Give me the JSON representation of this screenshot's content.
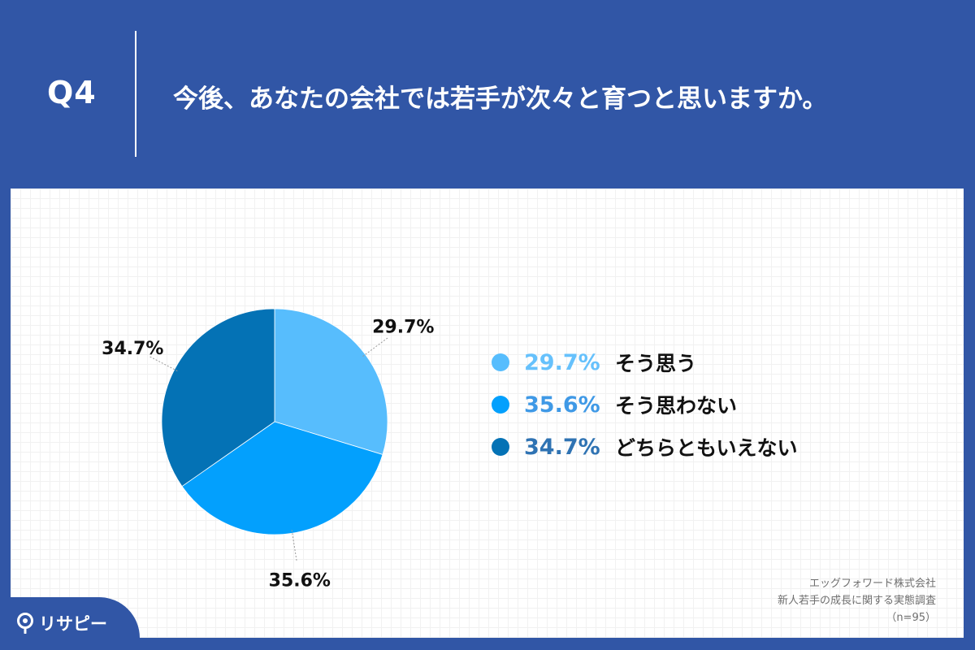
{
  "header": {
    "question_number": "Q4",
    "question_text": "今後、あなたの会社では若手が次々と育つと思いますか。"
  },
  "chart_data": {
    "type": "pie",
    "start_angle_deg": 0,
    "direction": "clockwise",
    "slices": [
      {
        "label": "そう思う",
        "value": 29.7,
        "display": "29.7%",
        "color": "#57bdfd"
      },
      {
        "label": "そう思わない",
        "value": 35.6,
        "display": "35.6%",
        "color": "#03a0fd"
      },
      {
        "label": "どちらともいえない",
        "value": 34.7,
        "display": "34.7%",
        "color": "#0472b5"
      }
    ],
    "legend_placement": "right",
    "legend_pct_colors": [
      "#66c1fc",
      "#3f99e6",
      "#2f73b3"
    ]
  },
  "footer": {
    "company": "エッグフォワード株式会社",
    "survey": "新人若手の成長に関する実態調査",
    "sample": "（n=95）"
  },
  "brand": {
    "logo_text": "リサピー",
    "logo_icon": "magnifier-pin-icon"
  }
}
